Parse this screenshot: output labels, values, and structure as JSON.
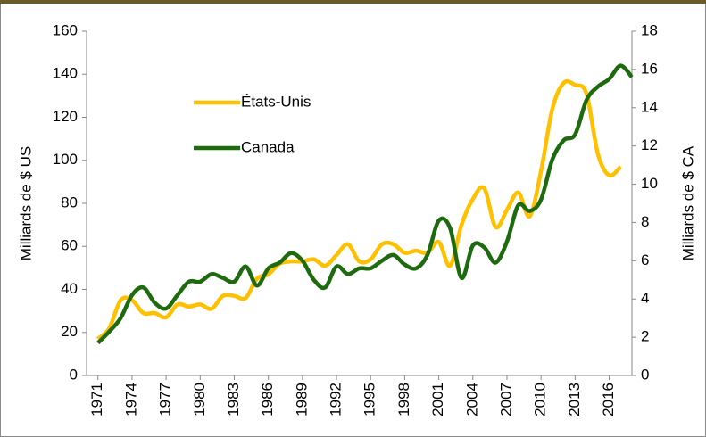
{
  "chart_data": {
    "type": "line",
    "x": [
      1971,
      1972,
      1973,
      1974,
      1975,
      1976,
      1977,
      1978,
      1979,
      1980,
      1981,
      1982,
      1983,
      1984,
      1985,
      1986,
      1987,
      1988,
      1989,
      1990,
      1991,
      1992,
      1993,
      1994,
      1995,
      1996,
      1997,
      1998,
      1999,
      2000,
      2001,
      2002,
      2003,
      2004,
      2005,
      2006,
      2007,
      2008,
      2009,
      2010,
      2011,
      2012,
      2013,
      2014,
      2015,
      2016,
      2017,
      2018
    ],
    "xlim": [
      1970,
      2018
    ],
    "xticks": [
      1971,
      1974,
      1977,
      1980,
      1983,
      1986,
      1989,
      1992,
      1995,
      1998,
      2001,
      2004,
      2007,
      2010,
      2013,
      2016
    ],
    "ylabel": "Milliards de $ US",
    "y2label": "Milliards de $ CA",
    "ylim": [
      0,
      160
    ],
    "yticks": [
      0,
      20,
      40,
      60,
      80,
      100,
      120,
      140,
      160
    ],
    "y2lim": [
      0,
      18
    ],
    "y2ticks": [
      0,
      2,
      4,
      6,
      8,
      10,
      12,
      14,
      16,
      18
    ],
    "legend": "upper left",
    "series": [
      {
        "name": "États-Unis",
        "color": "#ffc000",
        "values": [
          17,
          22,
          35,
          35,
          29,
          29,
          27,
          33,
          32,
          33,
          31,
          37,
          37,
          36,
          45,
          47,
          52,
          53,
          53,
          54,
          51,
          56,
          61,
          53,
          54,
          61,
          61,
          57,
          58,
          57,
          62,
          51,
          70,
          82,
          87,
          69,
          77,
          85,
          74,
          95,
          124,
          136,
          135,
          131,
          103,
          93,
          97,
          null
        ]
      },
      {
        "name": "Canada",
        "color": "#1e6b0f",
        "axis": "y2",
        "values": [
          1.7,
          2.3,
          3.0,
          4.2,
          4.6,
          3.8,
          3.5,
          4.2,
          4.9,
          4.9,
          5.3,
          5.1,
          4.9,
          5.7,
          4.7,
          5.6,
          5.9,
          6.4,
          6.0,
          5.0,
          4.6,
          5.7,
          5.3,
          5.6,
          5.6,
          6.0,
          6.3,
          5.8,
          5.6,
          6.3,
          8.1,
          7.7,
          5.1,
          6.8,
          6.7,
          5.9,
          7.0,
          8.9,
          8.6,
          9.2,
          11.3,
          12.3,
          12.6,
          14.4,
          15.1,
          15.5,
          16.2,
          15.6
        ]
      }
    ]
  }
}
